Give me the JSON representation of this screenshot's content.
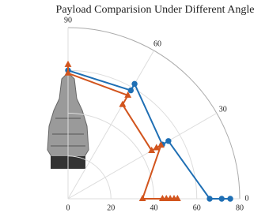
{
  "chart_data": {
    "type": "polar",
    "title": "Payload Comparision Under Different Angle",
    "rlim": [
      0,
      80
    ],
    "rticks": [
      0,
      20,
      40,
      60,
      80
    ],
    "thetalim": [
      0,
      90
    ],
    "thetaticks": [
      0,
      30,
      60,
      90
    ],
    "grid": true,
    "series": [
      {
        "color": "#1f6fb4",
        "marker": "circle",
        "theta": [
          90,
          60,
          60,
          30,
          30,
          0,
          0,
          0
        ],
        "r": [
          60,
          58.5,
          62,
          50.7,
          54,
          66,
          71.6,
          75.6
        ]
      },
      {
        "color": "#d2551e",
        "marker": "triangle",
        "theta": [
          90,
          90,
          60,
          60,
          30,
          30,
          30,
          0,
          0,
          0,
          0,
          0,
          0
        ],
        "r": [
          62.7,
          58.7,
          55.8,
          50.8,
          45,
          47.6,
          50,
          34.7,
          44,
          45.8,
          47.6,
          49.4,
          51
        ]
      }
    ]
  }
}
